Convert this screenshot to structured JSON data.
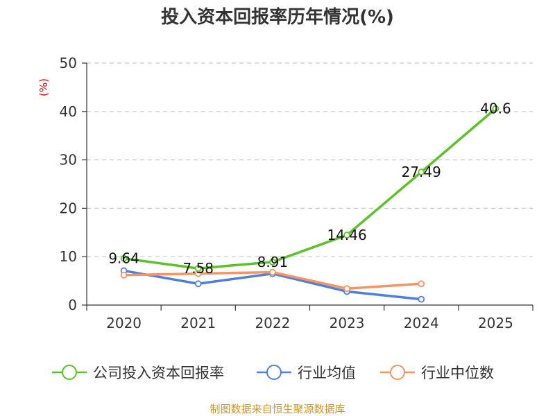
{
  "chart_data": {
    "type": "line",
    "title": "投入资本回报率历年情况(%)",
    "ylabel": "(%)",
    "xlabel": "",
    "categories": [
      "2020",
      "2021",
      "2022",
      "2023",
      "2024",
      "2025"
    ],
    "ylim": [
      0,
      50
    ],
    "yticks": [
      0,
      10,
      20,
      30,
      40,
      50
    ],
    "grid": true,
    "legend_position": "bottom",
    "series": [
      {
        "name": "公司投入资本回报率",
        "color": "#5bc22a",
        "values": [
          9.64,
          7.58,
          8.91,
          14.46,
          27.49,
          40.6
        ],
        "labels": [
          "9.64",
          "7.58",
          "8.91",
          "14.46",
          "27.49",
          "40.6"
        ]
      },
      {
        "name": "行业均值",
        "color": "#4f7fdc",
        "values": [
          7.1,
          4.4,
          6.5,
          2.8,
          1.2,
          null
        ]
      },
      {
        "name": "行业中位数",
        "color": "#f59563",
        "values": [
          6.2,
          6.5,
          6.8,
          3.4,
          4.4,
          null
        ]
      }
    ],
    "source": "制图数据来自恒生聚源数据库"
  }
}
